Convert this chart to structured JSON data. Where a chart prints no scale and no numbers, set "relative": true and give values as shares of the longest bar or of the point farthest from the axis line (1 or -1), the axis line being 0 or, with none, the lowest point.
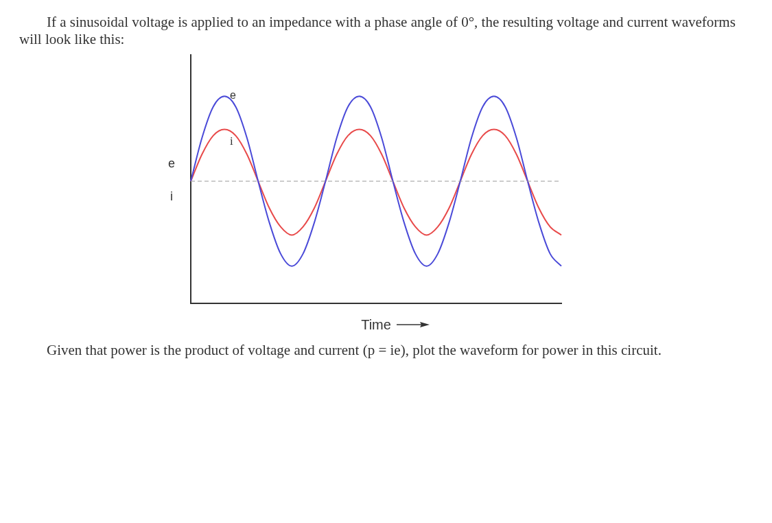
{
  "chart_data": {
    "type": "line",
    "title": "If a sinusoidal voltage is applied to an impedance with a phase angle of 0°, the resulting voltage and current waveforms will look like this:",
    "xlabel": "Time",
    "ylabel": "e i",
    "annotations": [
      "Given that power is the product of voltage and current (p = ie), plot the waveform for power in this circuit."
    ],
    "relative": true,
    "categories": [
      null,
      null,
      null,
      null,
      null,
      null,
      null,
      null,
      null,
      null,
      null,
      null,
      null,
      null,
      null,
      null,
      null,
      null,
      null,
      null,
      null,
      null,
      null,
      null,
      null,
      null,
      null,
      null,
      null,
      null,
      null,
      null,
      null,
      null
    ],
    "series": [
      {
        "name": "e",
        "color": "#4a4ad8",
        "values": [
          0.59,
          0.8,
          0.95,
          1,
          0.95,
          0.8,
          0.59,
          0.39,
          0.24,
          0.18,
          0.24,
          0.39,
          0.59,
          0.8,
          0.95,
          1,
          0.95,
          0.8,
          0.59,
          0.39,
          0.24,
          0.18,
          0.24,
          0.39,
          0.59,
          0.8,
          0.95,
          1,
          0.95,
          0.8,
          0.59,
          0.39,
          0.24,
          0.18
        ]
      },
      {
        "name": "i",
        "color": "#e84a4a",
        "values": [
          0.59,
          0.72,
          0.81,
          0.84,
          0.81,
          0.72,
          0.59,
          0.46,
          0.37,
          0.33,
          0.37,
          0.46,
          0.59,
          0.72,
          0.81,
          0.84,
          0.81,
          0.72,
          0.59,
          0.46,
          0.37,
          0.33,
          0.37,
          0.46,
          0.59,
          0.72,
          0.81,
          0.84,
          0.81,
          0.72,
          0.59,
          0.46,
          0.37,
          0.33
        ]
      }
    ],
    "ref_lines": [
      {
        "axis": "y",
        "value": 0.59,
        "color": "#999999",
        "line_style": "dashed"
      }
    ],
    "grid": false,
    "legend": false,
    "marker": "none",
    "line_style": "solid"
  }
}
